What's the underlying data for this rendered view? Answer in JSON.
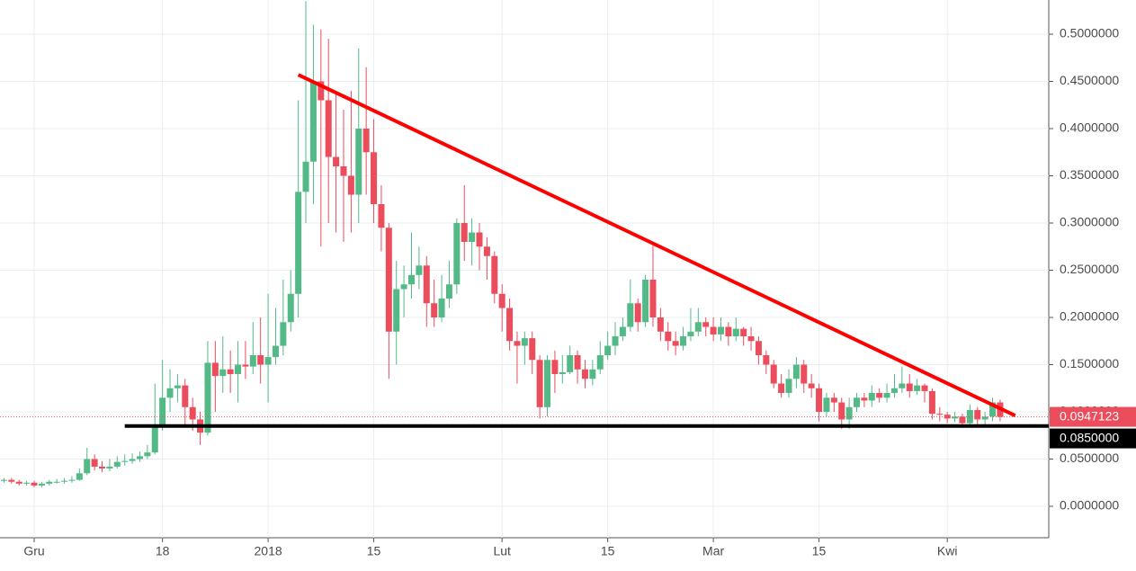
{
  "chart_data": {
    "type": "candlestick",
    "categories": [
      null,
      null,
      null,
      null,
      "Gru",
      null,
      null,
      null,
      null,
      null,
      null,
      null,
      null,
      null,
      null,
      null,
      null,
      null,
      null,
      null,
      null,
      "18",
      null,
      null,
      null,
      null,
      null,
      null,
      null,
      null,
      null,
      null,
      null,
      null,
      null,
      "2018",
      null,
      null,
      null,
      null,
      null,
      null,
      null,
      null,
      null,
      null,
      null,
      null,
      null,
      "15",
      null,
      null,
      null,
      null,
      null,
      null,
      null,
      null,
      null,
      null,
      null,
      null,
      null,
      null,
      null,
      null,
      "Lut",
      null,
      null,
      null,
      null,
      null,
      null,
      null,
      null,
      null,
      null,
      null,
      null,
      null,
      "15",
      null,
      null,
      null,
      null,
      null,
      null,
      null,
      null,
      null,
      null,
      null,
      null,
      null,
      "Mar",
      null,
      null,
      null,
      null,
      null,
      null,
      null,
      null,
      null,
      null,
      null,
      null,
      null,
      "15",
      null,
      null,
      null,
      null,
      null,
      null,
      null,
      null,
      null,
      null,
      null,
      null,
      null,
      null,
      null,
      null,
      "Kwi",
      null,
      null,
      null,
      null,
      null,
      null,
      null
    ],
    "open": [
      0.027,
      0.028,
      0.026,
      0.024,
      0.025,
      0.022,
      0.024,
      0.026,
      0.026,
      0.027,
      0.028,
      0.035,
      0.05,
      0.042,
      0.04,
      0.042,
      0.047,
      0.048,
      0.05,
      0.053,
      0.057,
      0.085,
      0.115,
      0.125,
      0.128,
      0.105,
      0.092,
      0.078,
      0.152,
      0.138,
      0.145,
      0.14,
      0.15,
      0.148,
      0.16,
      0.15,
      0.158,
      0.17,
      0.195,
      0.225,
      0.333,
      0.365,
      0.45,
      0.43,
      0.37,
      0.36,
      0.35,
      0.33,
      0.4,
      0.375,
      0.32,
      0.295,
      0.185,
      0.23,
      0.235,
      0.245,
      0.255,
      0.215,
      0.2,
      0.22,
      0.235,
      0.3,
      0.28,
      0.29,
      0.275,
      0.265,
      0.225,
      0.21,
      0.175,
      0.17,
      0.178,
      0.155,
      0.105,
      0.155,
      0.14,
      0.142,
      0.16,
      0.145,
      0.135,
      0.145,
      0.16,
      0.17,
      0.18,
      0.19,
      0.215,
      0.195,
      0.24,
      0.2,
      0.185,
      0.175,
      0.17,
      0.18,
      0.185,
      0.195,
      0.19,
      0.182,
      0.19,
      0.18,
      0.188,
      0.18,
      0.175,
      0.16,
      0.15,
      0.13,
      0.12,
      0.135,
      0.15,
      0.13,
      0.125,
      0.1,
      0.115,
      0.11,
      0.092,
      0.105,
      0.115,
      0.112,
      0.12,
      0.115,
      0.12,
      0.125,
      0.13,
      0.122,
      0.128,
      0.122,
      0.098,
      0.097,
      0.093,
      0.095,
      0.088,
      0.102,
      0.092,
      0.095,
      0.11
    ],
    "high": [
      0.03,
      0.03,
      0.028,
      0.027,
      0.027,
      0.026,
      0.028,
      0.029,
      0.03,
      0.032,
      0.04,
      0.062,
      0.055,
      0.048,
      0.05,
      0.053,
      0.055,
      0.056,
      0.058,
      0.065,
      0.13,
      0.155,
      0.145,
      0.14,
      0.135,
      0.115,
      0.1,
      0.175,
      0.175,
      0.18,
      0.165,
      0.175,
      0.175,
      0.195,
      0.2,
      0.225,
      0.21,
      0.24,
      0.25,
      0.43,
      0.535,
      0.51,
      0.505,
      0.495,
      0.44,
      0.42,
      0.44,
      0.485,
      0.465,
      0.41,
      0.34,
      0.3,
      0.26,
      0.255,
      0.29,
      0.275,
      0.265,
      0.24,
      0.245,
      0.26,
      0.305,
      0.34,
      0.305,
      0.3,
      0.285,
      0.27,
      0.235,
      0.22,
      0.185,
      0.185,
      0.185,
      0.16,
      0.16,
      0.165,
      0.16,
      0.17,
      0.165,
      0.155,
      0.155,
      0.175,
      0.185,
      0.195,
      0.2,
      0.24,
      0.22,
      0.245,
      0.28,
      0.21,
      0.195,
      0.185,
      0.19,
      0.21,
      0.21,
      0.2,
      0.2,
      0.2,
      0.195,
      0.2,
      0.19,
      0.19,
      0.18,
      0.165,
      0.155,
      0.14,
      0.145,
      0.158,
      0.155,
      0.14,
      0.13,
      0.12,
      0.12,
      0.115,
      0.115,
      0.12,
      0.12,
      0.128,
      0.125,
      0.13,
      0.14,
      0.148,
      0.14,
      0.135,
      0.13,
      0.125,
      0.105,
      0.1,
      0.1,
      0.098,
      0.108,
      0.105,
      0.1,
      0.115,
      0.113
    ],
    "low": [
      0.025,
      0.024,
      0.022,
      0.022,
      0.02,
      0.02,
      0.022,
      0.024,
      0.024,
      0.025,
      0.027,
      0.033,
      0.038,
      0.036,
      0.037,
      0.04,
      0.043,
      0.045,
      0.047,
      0.05,
      0.055,
      0.08,
      0.1,
      0.11,
      0.085,
      0.08,
      0.065,
      0.075,
      0.1,
      0.12,
      0.12,
      0.11,
      0.135,
      0.14,
      0.13,
      0.11,
      0.15,
      0.16,
      0.185,
      0.2,
      0.3,
      0.32,
      0.275,
      0.3,
      0.29,
      0.28,
      0.29,
      0.3,
      0.33,
      0.3,
      0.27,
      0.135,
      0.15,
      0.2,
      0.22,
      0.23,
      0.19,
      0.19,
      0.195,
      0.21,
      0.225,
      0.26,
      0.255,
      0.25,
      0.24,
      0.215,
      0.185,
      0.165,
      0.13,
      0.15,
      0.14,
      0.093,
      0.095,
      0.12,
      0.13,
      0.14,
      0.13,
      0.125,
      0.128,
      0.14,
      0.155,
      0.16,
      0.175,
      0.185,
      0.185,
      0.19,
      0.19,
      0.175,
      0.165,
      0.16,
      0.165,
      0.175,
      0.18,
      0.18,
      0.175,
      0.175,
      0.17,
      0.175,
      0.17,
      0.165,
      0.15,
      0.14,
      0.125,
      0.115,
      0.115,
      0.125,
      0.12,
      0.115,
      0.09,
      0.095,
      0.1,
      0.082,
      0.082,
      0.1,
      0.105,
      0.105,
      0.11,
      0.11,
      0.115,
      0.12,
      0.115,
      0.118,
      0.11,
      0.092,
      0.09,
      0.088,
      0.089,
      0.083,
      0.085,
      0.086,
      0.085,
      0.09,
      0.09
    ],
    "close": [
      0.028,
      0.026,
      0.024,
      0.025,
      0.022,
      0.024,
      0.026,
      0.026,
      0.027,
      0.028,
      0.035,
      0.05,
      0.042,
      0.04,
      0.042,
      0.047,
      0.048,
      0.05,
      0.053,
      0.057,
      0.085,
      0.115,
      0.125,
      0.128,
      0.105,
      0.092,
      0.078,
      0.152,
      0.138,
      0.145,
      0.14,
      0.15,
      0.148,
      0.16,
      0.15,
      0.158,
      0.17,
      0.195,
      0.225,
      0.333,
      0.365,
      0.45,
      0.43,
      0.37,
      0.36,
      0.35,
      0.33,
      0.4,
      0.375,
      0.32,
      0.295,
      0.185,
      0.23,
      0.235,
      0.245,
      0.255,
      0.215,
      0.2,
      0.22,
      0.235,
      0.3,
      0.28,
      0.29,
      0.275,
      0.265,
      0.225,
      0.21,
      0.175,
      0.17,
      0.178,
      0.155,
      0.105,
      0.155,
      0.14,
      0.142,
      0.16,
      0.145,
      0.135,
      0.145,
      0.16,
      0.17,
      0.18,
      0.19,
      0.215,
      0.195,
      0.24,
      0.2,
      0.185,
      0.175,
      0.17,
      0.18,
      0.185,
      0.195,
      0.19,
      0.182,
      0.19,
      0.18,
      0.188,
      0.18,
      0.175,
      0.16,
      0.15,
      0.13,
      0.12,
      0.135,
      0.15,
      0.13,
      0.125,
      0.1,
      0.115,
      0.11,
      0.092,
      0.105,
      0.115,
      0.112,
      0.12,
      0.115,
      0.12,
      0.125,
      0.13,
      0.122,
      0.128,
      0.122,
      0.098,
      0.097,
      0.093,
      0.095,
      0.088,
      0.102,
      0.092,
      0.095,
      0.11,
      0.0947
    ],
    "up_color": "#53b987",
    "down_color": "#eb4d5c",
    "ylim": [
      -0.0333,
      0.5362
    ],
    "yticks": [
      {
        "value": 0,
        "label": "0.0000000"
      },
      {
        "value": 0.05,
        "label": "0.0500000"
      },
      {
        "value": 0.1,
        "label": "0.1000000"
      },
      {
        "value": 0.15,
        "label": "0.1500000"
      },
      {
        "value": 0.2,
        "label": "0.2000000"
      },
      {
        "value": 0.25,
        "label": "0.2500000"
      },
      {
        "value": 0.3,
        "label": "0.3000000"
      },
      {
        "value": 0.35,
        "label": "0.3500000"
      },
      {
        "value": 0.4,
        "label": "0.4000000"
      },
      {
        "value": 0.45,
        "label": "0.4500000"
      },
      {
        "value": 0.5,
        "label": "0.5000000"
      }
    ],
    "grid": true,
    "last_price": {
      "value": 0.0947123,
      "label": "0.0947123",
      "color": "#eb4d5c"
    },
    "support": {
      "value": 0.085,
      "label": "0.0850000",
      "color": "#000000",
      "start": 16
    },
    "trendline": {
      "color": "#ff0000",
      "start": [
        39,
        0.457
      ],
      "end": [
        134,
        0.096
      ]
    }
  }
}
